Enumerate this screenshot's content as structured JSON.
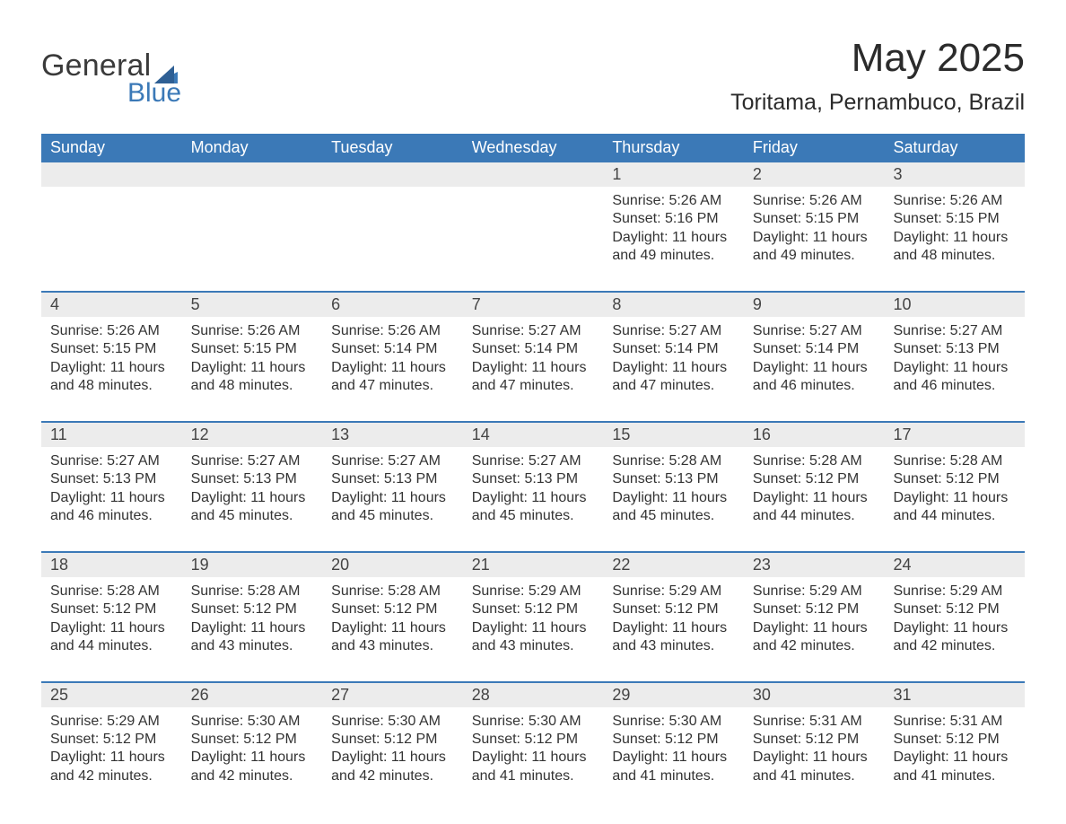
{
  "logo": {
    "word1": "General",
    "word2": "Blue"
  },
  "header": {
    "month_title": "May 2025",
    "location": "Toritama, Pernambuco, Brazil"
  },
  "colors": {
    "header_bg": "#3b79b7",
    "header_text": "#ffffff",
    "daynum_bg": "#ececec",
    "text": "#333333",
    "rule": "#3b79b7",
    "page_bg": "#ffffff",
    "logo_accent": "#3b79b7"
  },
  "weekdays": [
    "Sunday",
    "Monday",
    "Tuesday",
    "Wednesday",
    "Thursday",
    "Friday",
    "Saturday"
  ],
  "weeks": [
    [
      {
        "day": "",
        "sunrise": "",
        "sunset": "",
        "daylight": ""
      },
      {
        "day": "",
        "sunrise": "",
        "sunset": "",
        "daylight": ""
      },
      {
        "day": "",
        "sunrise": "",
        "sunset": "",
        "daylight": ""
      },
      {
        "day": "",
        "sunrise": "",
        "sunset": "",
        "daylight": ""
      },
      {
        "day": "1",
        "sunrise": "Sunrise: 5:26 AM",
        "sunset": "Sunset: 5:16 PM",
        "daylight": "Daylight: 11 hours and 49 minutes."
      },
      {
        "day": "2",
        "sunrise": "Sunrise: 5:26 AM",
        "sunset": "Sunset: 5:15 PM",
        "daylight": "Daylight: 11 hours and 49 minutes."
      },
      {
        "day": "3",
        "sunrise": "Sunrise: 5:26 AM",
        "sunset": "Sunset: 5:15 PM",
        "daylight": "Daylight: 11 hours and 48 minutes."
      }
    ],
    [
      {
        "day": "4",
        "sunrise": "Sunrise: 5:26 AM",
        "sunset": "Sunset: 5:15 PM",
        "daylight": "Daylight: 11 hours and 48 minutes."
      },
      {
        "day": "5",
        "sunrise": "Sunrise: 5:26 AM",
        "sunset": "Sunset: 5:15 PM",
        "daylight": "Daylight: 11 hours and 48 minutes."
      },
      {
        "day": "6",
        "sunrise": "Sunrise: 5:26 AM",
        "sunset": "Sunset: 5:14 PM",
        "daylight": "Daylight: 11 hours and 47 minutes."
      },
      {
        "day": "7",
        "sunrise": "Sunrise: 5:27 AM",
        "sunset": "Sunset: 5:14 PM",
        "daylight": "Daylight: 11 hours and 47 minutes."
      },
      {
        "day": "8",
        "sunrise": "Sunrise: 5:27 AM",
        "sunset": "Sunset: 5:14 PM",
        "daylight": "Daylight: 11 hours and 47 minutes."
      },
      {
        "day": "9",
        "sunrise": "Sunrise: 5:27 AM",
        "sunset": "Sunset: 5:14 PM",
        "daylight": "Daylight: 11 hours and 46 minutes."
      },
      {
        "day": "10",
        "sunrise": "Sunrise: 5:27 AM",
        "sunset": "Sunset: 5:13 PM",
        "daylight": "Daylight: 11 hours and 46 minutes."
      }
    ],
    [
      {
        "day": "11",
        "sunrise": "Sunrise: 5:27 AM",
        "sunset": "Sunset: 5:13 PM",
        "daylight": "Daylight: 11 hours and 46 minutes."
      },
      {
        "day": "12",
        "sunrise": "Sunrise: 5:27 AM",
        "sunset": "Sunset: 5:13 PM",
        "daylight": "Daylight: 11 hours and 45 minutes."
      },
      {
        "day": "13",
        "sunrise": "Sunrise: 5:27 AM",
        "sunset": "Sunset: 5:13 PM",
        "daylight": "Daylight: 11 hours and 45 minutes."
      },
      {
        "day": "14",
        "sunrise": "Sunrise: 5:27 AM",
        "sunset": "Sunset: 5:13 PM",
        "daylight": "Daylight: 11 hours and 45 minutes."
      },
      {
        "day": "15",
        "sunrise": "Sunrise: 5:28 AM",
        "sunset": "Sunset: 5:13 PM",
        "daylight": "Daylight: 11 hours and 45 minutes."
      },
      {
        "day": "16",
        "sunrise": "Sunrise: 5:28 AM",
        "sunset": "Sunset: 5:12 PM",
        "daylight": "Daylight: 11 hours and 44 minutes."
      },
      {
        "day": "17",
        "sunrise": "Sunrise: 5:28 AM",
        "sunset": "Sunset: 5:12 PM",
        "daylight": "Daylight: 11 hours and 44 minutes."
      }
    ],
    [
      {
        "day": "18",
        "sunrise": "Sunrise: 5:28 AM",
        "sunset": "Sunset: 5:12 PM",
        "daylight": "Daylight: 11 hours and 44 minutes."
      },
      {
        "day": "19",
        "sunrise": "Sunrise: 5:28 AM",
        "sunset": "Sunset: 5:12 PM",
        "daylight": "Daylight: 11 hours and 43 minutes."
      },
      {
        "day": "20",
        "sunrise": "Sunrise: 5:28 AM",
        "sunset": "Sunset: 5:12 PM",
        "daylight": "Daylight: 11 hours and 43 minutes."
      },
      {
        "day": "21",
        "sunrise": "Sunrise: 5:29 AM",
        "sunset": "Sunset: 5:12 PM",
        "daylight": "Daylight: 11 hours and 43 minutes."
      },
      {
        "day": "22",
        "sunrise": "Sunrise: 5:29 AM",
        "sunset": "Sunset: 5:12 PM",
        "daylight": "Daylight: 11 hours and 43 minutes."
      },
      {
        "day": "23",
        "sunrise": "Sunrise: 5:29 AM",
        "sunset": "Sunset: 5:12 PM",
        "daylight": "Daylight: 11 hours and 42 minutes."
      },
      {
        "day": "24",
        "sunrise": "Sunrise: 5:29 AM",
        "sunset": "Sunset: 5:12 PM",
        "daylight": "Daylight: 11 hours and 42 minutes."
      }
    ],
    [
      {
        "day": "25",
        "sunrise": "Sunrise: 5:29 AM",
        "sunset": "Sunset: 5:12 PM",
        "daylight": "Daylight: 11 hours and 42 minutes."
      },
      {
        "day": "26",
        "sunrise": "Sunrise: 5:30 AM",
        "sunset": "Sunset: 5:12 PM",
        "daylight": "Daylight: 11 hours and 42 minutes."
      },
      {
        "day": "27",
        "sunrise": "Sunrise: 5:30 AM",
        "sunset": "Sunset: 5:12 PM",
        "daylight": "Daylight: 11 hours and 42 minutes."
      },
      {
        "day": "28",
        "sunrise": "Sunrise: 5:30 AM",
        "sunset": "Sunset: 5:12 PM",
        "daylight": "Daylight: 11 hours and 41 minutes."
      },
      {
        "day": "29",
        "sunrise": "Sunrise: 5:30 AM",
        "sunset": "Sunset: 5:12 PM",
        "daylight": "Daylight: 11 hours and 41 minutes."
      },
      {
        "day": "30",
        "sunrise": "Sunrise: 5:31 AM",
        "sunset": "Sunset: 5:12 PM",
        "daylight": "Daylight: 11 hours and 41 minutes."
      },
      {
        "day": "31",
        "sunrise": "Sunrise: 5:31 AM",
        "sunset": "Sunset: 5:12 PM",
        "daylight": "Daylight: 11 hours and 41 minutes."
      }
    ]
  ]
}
